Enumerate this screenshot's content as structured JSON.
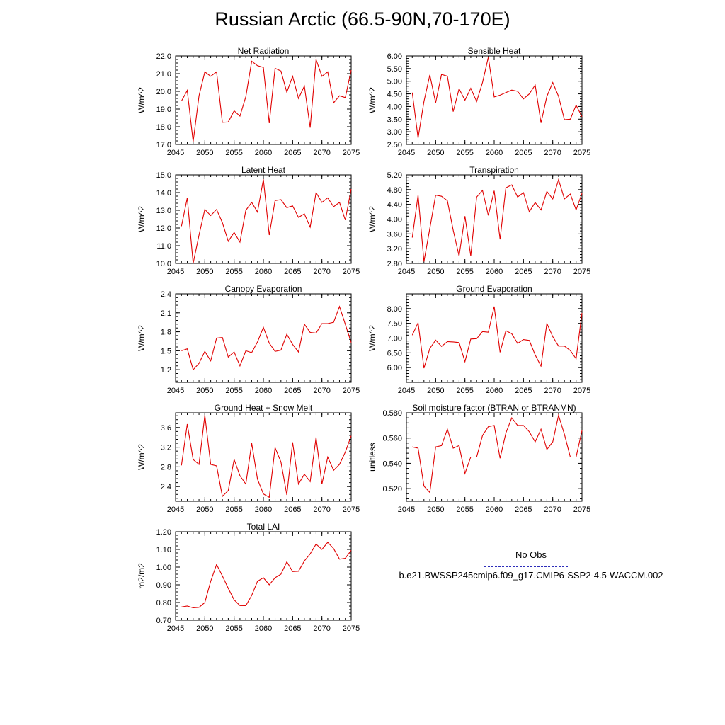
{
  "figure": {
    "title": "Russian Arctic (66.5-90N,70-170E)",
    "legend": {
      "obs_label": "No Obs",
      "case_label": "b.e21.BWSSP245cmip6.f09_g17.CMIP6-SSP2-4.5-WACCM.002",
      "obs_color": "#2d2dba",
      "case_color": "#e00000"
    }
  },
  "chart_data": [
    {
      "type": "line",
      "title": "Net Radiation",
      "ylabel": "W/m^2",
      "xlabel": "",
      "xlim": [
        2045,
        2075
      ],
      "ylim": [
        17.0,
        22.0
      ],
      "xticks": [
        2045,
        2050,
        2055,
        2060,
        2065,
        2070,
        2075
      ],
      "yticks": [
        "17.0",
        "18.0",
        "19.0",
        "20.0",
        "21.0",
        "22.0"
      ],
      "x": [
        2046,
        2047,
        2048,
        2049,
        2050,
        2051,
        2052,
        2053,
        2054,
        2055,
        2056,
        2057,
        2058,
        2059,
        2060,
        2061,
        2062,
        2063,
        2064,
        2065,
        2066,
        2067,
        2068,
        2069,
        2070,
        2071,
        2072,
        2073,
        2074,
        2075
      ],
      "series": [
        {
          "name": "b.e21.BWSSP245cmip6.f09_g17.CMIP6-SSP2-4.5-WACCM.002",
          "values": [
            19.45,
            20.05,
            17.15,
            19.75,
            21.1,
            20.85,
            21.1,
            18.25,
            18.27,
            18.9,
            18.6,
            19.7,
            21.7,
            21.45,
            21.35,
            18.2,
            21.3,
            21.15,
            19.95,
            20.85,
            19.6,
            20.3,
            17.95,
            21.8,
            20.85,
            21.1,
            19.35,
            19.75,
            19.65,
            21.2
          ]
        }
      ]
    },
    {
      "type": "line",
      "title": "Sensible Heat",
      "ylabel": "W/m^2",
      "xlabel": "",
      "xlim": [
        2045,
        2075
      ],
      "ylim": [
        2.5,
        6.0
      ],
      "xticks": [
        2045,
        2050,
        2055,
        2060,
        2065,
        2070,
        2075
      ],
      "yticks": [
        "2.50",
        "3.00",
        "3.50",
        "4.00",
        "4.50",
        "5.00",
        "5.50",
        "6.00"
      ],
      "x": [
        2046,
        2047,
        2048,
        2049,
        2050,
        2051,
        2052,
        2053,
        2054,
        2055,
        2056,
        2057,
        2058,
        2059,
        2060,
        2061,
        2062,
        2063,
        2064,
        2065,
        2066,
        2067,
        2068,
        2069,
        2070,
        2071,
        2072,
        2073,
        2074,
        2075
      ],
      "series": [
        {
          "name": "b.e21.BWSSP245cmip6.f09_g17.CMIP6-SSP2-4.5-WACCM.002",
          "values": [
            4.55,
            2.75,
            4.2,
            5.25,
            4.15,
            5.27,
            5.2,
            3.8,
            4.7,
            4.25,
            4.72,
            4.2,
            4.95,
            5.95,
            4.38,
            4.45,
            4.55,
            4.65,
            4.6,
            4.3,
            4.5,
            4.85,
            3.35,
            4.4,
            4.95,
            4.4,
            3.48,
            3.5,
            4.05,
            3.6
          ]
        }
      ]
    },
    {
      "type": "line",
      "title": "Latent Heat",
      "ylabel": "W/m^2",
      "xlabel": "",
      "xlim": [
        2045,
        2075
      ],
      "ylim": [
        10.0,
        15.0
      ],
      "xticks": [
        2045,
        2050,
        2055,
        2060,
        2065,
        2070,
        2075
      ],
      "yticks": [
        "10.0",
        "11.0",
        "12.0",
        "13.0",
        "14.0",
        "15.0"
      ],
      "x": [
        2046,
        2047,
        2048,
        2049,
        2050,
        2051,
        2052,
        2053,
        2054,
        2055,
        2056,
        2057,
        2058,
        2059,
        2060,
        2061,
        2062,
        2063,
        2064,
        2065,
        2066,
        2067,
        2068,
        2069,
        2070,
        2071,
        2072,
        2073,
        2074,
        2075
      ],
      "series": [
        {
          "name": "b.e21.BWSSP245cmip6.f09_g17.CMIP6-SSP2-4.5-WACCM.002",
          "values": [
            12.1,
            13.7,
            10.0,
            11.6,
            13.05,
            12.7,
            13.05,
            12.3,
            11.25,
            11.75,
            11.2,
            13.0,
            13.45,
            12.9,
            14.75,
            11.6,
            13.55,
            13.6,
            13.15,
            13.25,
            12.6,
            12.8,
            12.05,
            14.0,
            13.45,
            13.7,
            13.2,
            13.45,
            12.45,
            14.2
          ]
        }
      ]
    },
    {
      "type": "line",
      "title": "Transpiration",
      "ylabel": "W/m^2",
      "xlabel": "",
      "xlim": [
        2045,
        2075
      ],
      "ylim": [
        2.8,
        5.2
      ],
      "xticks": [
        2045,
        2050,
        2055,
        2060,
        2065,
        2070,
        2075
      ],
      "yticks": [
        "2.80",
        "3.20",
        "3.60",
        "4.00",
        "4.40",
        "4.80",
        "5.20"
      ],
      "x": [
        2046,
        2047,
        2048,
        2049,
        2050,
        2051,
        2052,
        2053,
        2054,
        2055,
        2056,
        2057,
        2058,
        2059,
        2060,
        2061,
        2062,
        2063,
        2064,
        2065,
        2066,
        2067,
        2068,
        2069,
        2070,
        2071,
        2072,
        2073,
        2074,
        2075
      ],
      "series": [
        {
          "name": "b.e21.BWSSP245cmip6.f09_g17.CMIP6-SSP2-4.5-WACCM.002",
          "values": [
            3.5,
            4.65,
            2.85,
            3.75,
            4.65,
            4.62,
            4.5,
            3.7,
            3.0,
            4.08,
            3.0,
            4.6,
            4.78,
            4.1,
            4.77,
            3.45,
            4.85,
            4.93,
            4.6,
            4.72,
            4.2,
            4.45,
            4.25,
            4.75,
            4.55,
            5.07,
            4.55,
            4.68,
            4.25,
            4.7
          ]
        }
      ]
    },
    {
      "type": "line",
      "title": "Canopy Evaporation",
      "ylabel": "W/m^2",
      "xlabel": "",
      "xlim": [
        2045,
        2075
      ],
      "ylim": [
        1.0,
        2.4
      ],
      "xticks": [
        2045,
        2050,
        2055,
        2060,
        2065,
        2070,
        2075
      ],
      "yticks": [
        "1.2",
        "1.5",
        "1.8",
        "2.1",
        "2.4"
      ],
      "x": [
        2046,
        2047,
        2048,
        2049,
        2050,
        2051,
        2052,
        2053,
        2054,
        2055,
        2056,
        2057,
        2058,
        2059,
        2060,
        2061,
        2062,
        2063,
        2064,
        2065,
        2066,
        2067,
        2068,
        2069,
        2070,
        2071,
        2072,
        2073,
        2074,
        2075
      ],
      "series": [
        {
          "name": "b.e21.BWSSP245cmip6.f09_g17.CMIP6-SSP2-4.5-WACCM.002",
          "values": [
            1.5,
            1.53,
            1.2,
            1.3,
            1.49,
            1.34,
            1.7,
            1.71,
            1.4,
            1.48,
            1.26,
            1.5,
            1.47,
            1.64,
            1.87,
            1.62,
            1.49,
            1.51,
            1.76,
            1.6,
            1.48,
            1.92,
            1.79,
            1.78,
            1.93,
            1.93,
            1.95,
            2.2,
            1.92,
            1.63
          ]
        }
      ]
    },
    {
      "type": "line",
      "title": "Ground Evaporation",
      "ylabel": "W/m^2",
      "xlabel": "",
      "xlim": [
        2045,
        2075
      ],
      "ylim": [
        5.5,
        8.5
      ],
      "xticks": [
        2045,
        2050,
        2055,
        2060,
        2065,
        2070,
        2075
      ],
      "yticks": [
        "6.00",
        "6.50",
        "7.00",
        "7.50",
        "8.00"
      ],
      "x": [
        2046,
        2047,
        2048,
        2049,
        2050,
        2051,
        2052,
        2053,
        2054,
        2055,
        2056,
        2057,
        2058,
        2059,
        2060,
        2061,
        2062,
        2063,
        2064,
        2065,
        2066,
        2067,
        2068,
        2069,
        2070,
        2071,
        2072,
        2073,
        2074,
        2075
      ],
      "series": [
        {
          "name": "b.e21.BWSSP245cmip6.f09_g17.CMIP6-SSP2-4.5-WACCM.002",
          "values": [
            7.1,
            7.52,
            5.98,
            6.65,
            6.93,
            6.72,
            6.88,
            6.87,
            6.85,
            6.2,
            6.97,
            6.98,
            7.22,
            7.2,
            8.07,
            6.52,
            7.25,
            7.15,
            6.82,
            6.95,
            6.92,
            6.43,
            6.05,
            7.5,
            7.05,
            6.73,
            6.73,
            6.58,
            6.3,
            7.85
          ]
        }
      ]
    },
    {
      "type": "line",
      "title": "Ground Heat + Snow Melt",
      "ylabel": "W/m^2",
      "xlabel": "",
      "xlim": [
        2045,
        2075
      ],
      "ylim": [
        2.1,
        3.9
      ],
      "xticks": [
        2045,
        2050,
        2055,
        2060,
        2065,
        2070,
        2075
      ],
      "yticks": [
        "2.4",
        "2.8",
        "3.2",
        "3.6"
      ],
      "x": [
        2046,
        2047,
        2048,
        2049,
        2050,
        2051,
        2052,
        2053,
        2054,
        2055,
        2056,
        2057,
        2058,
        2059,
        2060,
        2061,
        2062,
        2063,
        2064,
        2065,
        2066,
        2067,
        2068,
        2069,
        2070,
        2071,
        2072,
        2073,
        2074,
        2075
      ],
      "series": [
        {
          "name": "b.e21.BWSSP245cmip6.f09_g17.CMIP6-SSP2-4.5-WACCM.002",
          "values": [
            2.83,
            3.67,
            2.95,
            2.85,
            3.85,
            2.85,
            2.82,
            2.2,
            2.32,
            2.95,
            2.62,
            2.45,
            3.28,
            2.55,
            2.25,
            2.18,
            3.19,
            2.9,
            2.23,
            3.3,
            2.45,
            2.65,
            2.5,
            3.4,
            2.45,
            3.0,
            2.73,
            2.85,
            3.1,
            3.43
          ]
        }
      ]
    },
    {
      "type": "line",
      "title": "Soil moisture factor (BTRAN or BTRANMN)",
      "ylabel": "unitless",
      "xlabel": "",
      "xlim": [
        2045,
        2075
      ],
      "ylim": [
        0.51,
        0.58
      ],
      "xticks": [
        2045,
        2050,
        2055,
        2060,
        2065,
        2070,
        2075
      ],
      "yticks": [
        "0.520",
        "0.540",
        "0.560",
        "0.580"
      ],
      "x": [
        2046,
        2047,
        2048,
        2049,
        2050,
        2051,
        2052,
        2053,
        2054,
        2055,
        2056,
        2057,
        2058,
        2059,
        2060,
        2061,
        2062,
        2063,
        2064,
        2065,
        2066,
        2067,
        2068,
        2069,
        2070,
        2071,
        2072,
        2073,
        2074,
        2075
      ],
      "series": [
        {
          "name": "b.e21.BWSSP245cmip6.f09_g17.CMIP6-SSP2-4.5-WACCM.002",
          "values": [
            0.553,
            0.552,
            0.522,
            0.517,
            0.553,
            0.554,
            0.567,
            0.552,
            0.554,
            0.532,
            0.545,
            0.545,
            0.562,
            0.569,
            0.57,
            0.544,
            0.564,
            0.576,
            0.57,
            0.57,
            0.565,
            0.557,
            0.567,
            0.551,
            0.557,
            0.578,
            0.563,
            0.545,
            0.545,
            0.566
          ]
        }
      ]
    },
    {
      "type": "line",
      "title": "Total LAI",
      "ylabel": "m2/m2",
      "xlabel": "",
      "xlim": [
        2045,
        2075
      ],
      "ylim": [
        0.7,
        1.2
      ],
      "xticks": [
        2045,
        2050,
        2055,
        2060,
        2065,
        2070,
        2075
      ],
      "yticks": [
        "0.70",
        "0.80",
        "0.90",
        "1.00",
        "1.10",
        "1.20"
      ],
      "x": [
        2046,
        2047,
        2048,
        2049,
        2050,
        2051,
        2052,
        2053,
        2054,
        2055,
        2056,
        2057,
        2058,
        2059,
        2060,
        2061,
        2062,
        2063,
        2064,
        2065,
        2066,
        2067,
        2068,
        2069,
        2070,
        2071,
        2072,
        2073,
        2074,
        2075
      ],
      "series": [
        {
          "name": "b.e21.BWSSP245cmip6.f09_g17.CMIP6-SSP2-4.5-WACCM.002",
          "values": [
            0.775,
            0.78,
            0.77,
            0.773,
            0.8,
            0.92,
            1.015,
            0.95,
            0.88,
            0.815,
            0.783,
            0.782,
            0.84,
            0.92,
            0.94,
            0.9,
            0.94,
            0.96,
            1.03,
            0.975,
            0.977,
            1.035,
            1.075,
            1.13,
            1.1,
            1.14,
            1.105,
            1.045,
            1.05,
            1.095
          ]
        }
      ]
    }
  ]
}
